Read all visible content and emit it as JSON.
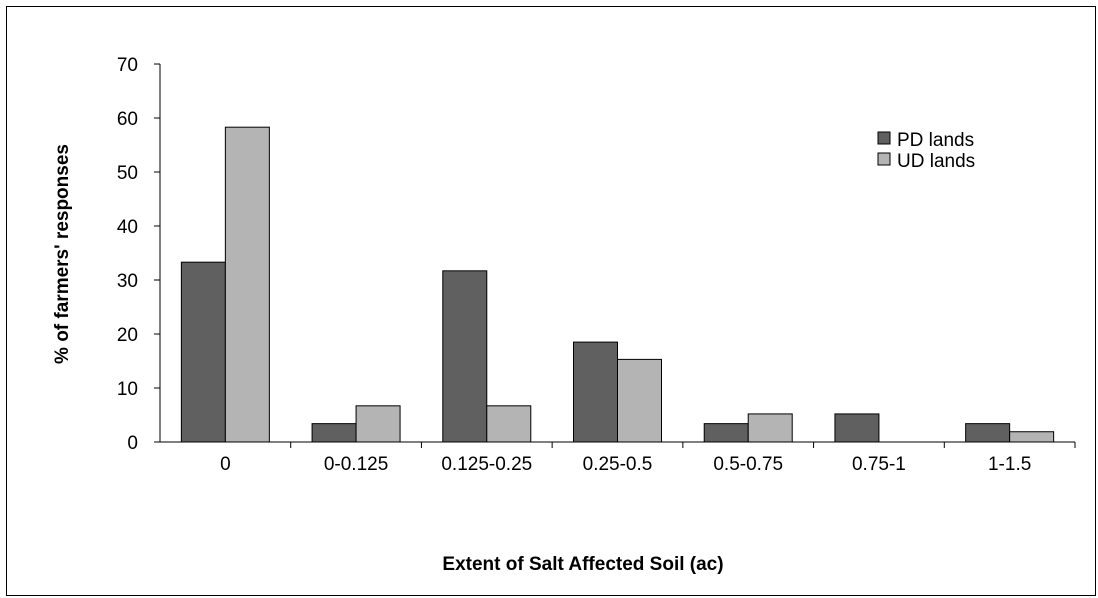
{
  "chart_data": {
    "type": "bar",
    "categories": [
      "0",
      "0-0.125",
      "0.125-0.25",
      "0.25-0.5",
      "0.5-0.75",
      "0.75-1",
      "1-1.5"
    ],
    "series": [
      {
        "name": "PD lands",
        "values": [
          33.3,
          3.4,
          31.7,
          18.5,
          3.4,
          5.2,
          3.4
        ],
        "color": "#606060"
      },
      {
        "name": "UD lands",
        "values": [
          58.3,
          6.7,
          6.7,
          15.3,
          5.2,
          0,
          1.9
        ],
        "color": "#b4b4b4"
      }
    ],
    "title": "",
    "xlabel": "Extent of Salt  Affected Soil (ac)",
    "ylabel": "% of farmers' responses",
    "ylim": [
      0,
      70
    ],
    "yticks": [
      "0",
      "10",
      "20",
      "30",
      "40",
      "50",
      "60",
      "70"
    ],
    "grid": false,
    "legend_position": "top-right",
    "bar_outline_color": "#000000"
  }
}
